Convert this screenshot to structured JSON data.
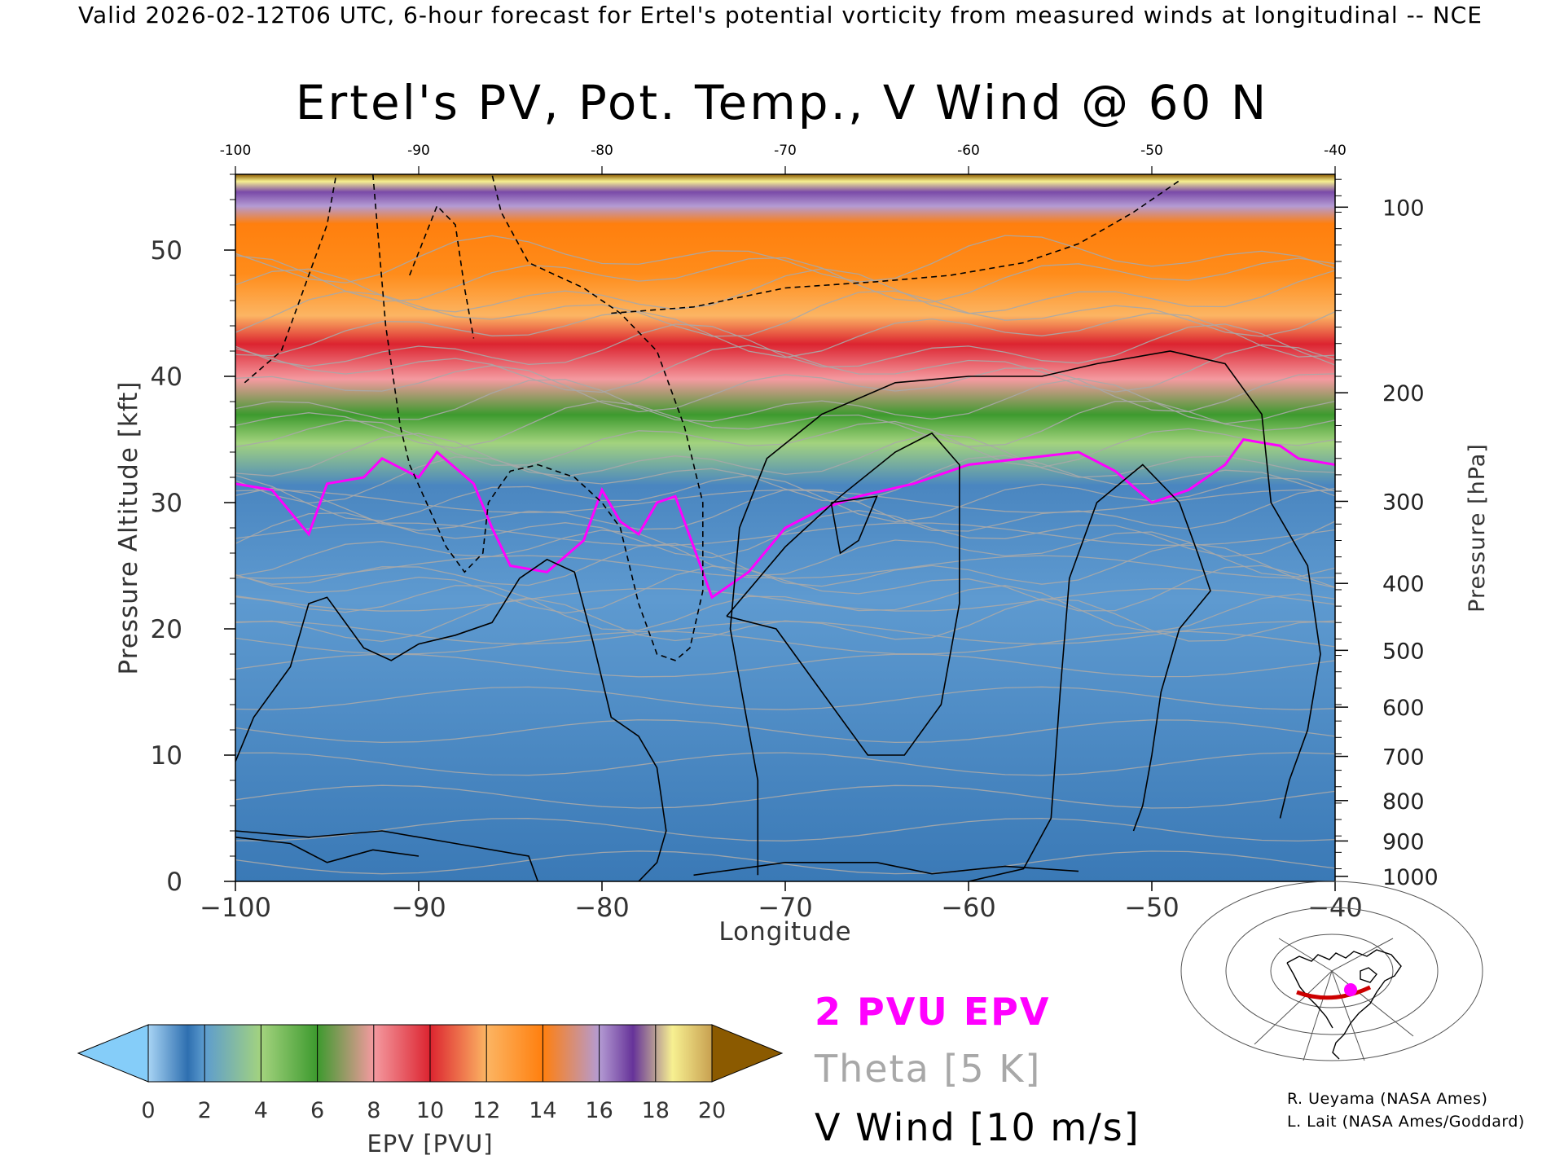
{
  "header": {
    "valid_line": "Valid 2026-02-12T06 UTC, 6-hour forecast for Ertel's potential vorticity from measured winds at longitudinal -- NCE"
  },
  "chart_data": {
    "type": "heatmap",
    "title": "Ertel's PV, Pot. Temp., V Wind @ 60 N",
    "xlabel": "Longitude",
    "ylabel": "Pressure Altitude [kft]",
    "y2label": "Pressure [hPa]",
    "xlim": [
      -100,
      -40
    ],
    "ylim": [
      0,
      56
    ],
    "x_ticks": [
      -100,
      -90,
      -80,
      -70,
      -60,
      -50,
      -40
    ],
    "x_tick_labels": [
      "−100",
      "−90",
      "−80",
      "−70",
      "−60",
      "−50",
      "−40"
    ],
    "x_top_tick_labels": [
      "-100",
      "-90",
      "-80",
      "-70",
      "-60",
      "-50",
      "-40"
    ],
    "y_ticks": [
      0,
      10,
      20,
      30,
      40,
      50
    ],
    "y_tick_labels": [
      "0",
      "10",
      "20",
      "30",
      "40",
      "50"
    ],
    "pressure_ticks": [
      {
        "label": "100",
        "kft": 53.4
      },
      {
        "label": "200",
        "kft": 38.7
      },
      {
        "label": "300",
        "kft": 30.1
      },
      {
        "label": "400",
        "kft": 23.6
      },
      {
        "label": "500",
        "kft": 18.3
      },
      {
        "label": "600",
        "kft": 13.8
      },
      {
        "label": "700",
        "kft": 9.9
      },
      {
        "label": "800",
        "kft": 6.4
      },
      {
        "label": "900",
        "kft": 3.2
      },
      {
        "label": "1000",
        "kft": 0.4
      }
    ],
    "epv_2pvu_tropopause_kft": [
      [
        -100,
        31.5
      ],
      [
        -98,
        31.0
      ],
      [
        -96,
        27.5
      ],
      [
        -95,
        31.5
      ],
      [
        -93,
        32.0
      ],
      [
        -92,
        33.5
      ],
      [
        -90,
        32.0
      ],
      [
        -89,
        34.0
      ],
      [
        -87,
        31.5
      ],
      [
        -86,
        28.0
      ],
      [
        -85,
        25.0
      ],
      [
        -83,
        24.5
      ],
      [
        -81,
        27.0
      ],
      [
        -80,
        31.0
      ],
      [
        -79,
        28.5
      ],
      [
        -78,
        27.5
      ],
      [
        -77,
        30.0
      ],
      [
        -76,
        30.5
      ],
      [
        -75,
        26.5
      ],
      [
        -74,
        22.5
      ],
      [
        -72,
        24.5
      ],
      [
        -70,
        28.0
      ],
      [
        -68,
        29.5
      ],
      [
        -66,
        30.5
      ],
      [
        -63,
        31.5
      ],
      [
        -60,
        33.0
      ],
      [
        -57,
        33.5
      ],
      [
        -54,
        34.0
      ],
      [
        -52,
        32.5
      ],
      [
        -50,
        30.0
      ],
      [
        -48,
        31.0
      ],
      [
        -46,
        33.0
      ],
      [
        -45,
        35.0
      ],
      [
        -43,
        34.5
      ],
      [
        -42,
        33.5
      ],
      [
        -40,
        33.0
      ]
    ],
    "v_wind_contours": [
      {
        "value": "0",
        "style": "solid",
        "points": [
          [
            -100,
            9.5
          ],
          [
            -99,
            13
          ],
          [
            -97,
            17
          ],
          [
            -96,
            22
          ],
          [
            -95,
            22.5
          ],
          [
            -93,
            18.5
          ],
          [
            -91.5,
            17.5
          ],
          [
            -90,
            18.8
          ],
          [
            -88,
            19.5
          ],
          [
            -86,
            20.5
          ],
          [
            -84.5,
            24
          ],
          [
            -83,
            25.5
          ],
          [
            -81.5,
            24.5
          ],
          [
            -80.5,
            19
          ],
          [
            -79.5,
            13
          ],
          [
            -78,
            11.5
          ],
          [
            -77,
            9
          ],
          [
            -76.5,
            4
          ],
          [
            -77,
            1.5
          ],
          [
            -78,
            0
          ]
        ]
      },
      {
        "value": "0",
        "style": "solid",
        "points": [
          [
            -75,
            0.5
          ],
          [
            -70,
            1.5
          ],
          [
            -65,
            1.5
          ],
          [
            -62,
            0.6
          ],
          [
            -58,
            1.2
          ],
          [
            -54,
            0.8
          ]
        ]
      },
      {
        "value": "0",
        "style": "solid",
        "points": [
          [
            -71.5,
            0.5
          ],
          [
            -71.5,
            8
          ],
          [
            -73,
            20
          ],
          [
            -72.5,
            28
          ],
          [
            -71,
            33.5
          ],
          [
            -68,
            37
          ],
          [
            -64,
            39.5
          ],
          [
            -60,
            40
          ],
          [
            -56,
            40
          ],
          [
            -53,
            41
          ],
          [
            -49,
            42
          ],
          [
            -46,
            41
          ],
          [
            -44,
            37
          ],
          [
            -43.5,
            30
          ],
          [
            -41.5,
            25
          ],
          [
            -40.8,
            18
          ],
          [
            -41.5,
            12
          ],
          [
            -42.5,
            8
          ],
          [
            -43,
            5
          ]
        ]
      },
      {
        "value": "10",
        "style": "solid",
        "points": [
          [
            -73.2,
            21
          ],
          [
            -70,
            26.5
          ],
          [
            -67,
            30.5
          ],
          [
            -64,
            34
          ],
          [
            -62,
            35.5
          ],
          [
            -60.5,
            33
          ],
          [
            -60.5,
            22
          ],
          [
            -61.5,
            14
          ],
          [
            -63.5,
            10
          ],
          [
            -65.5,
            10
          ],
          [
            -68,
            15
          ],
          [
            -70.5,
            20
          ],
          [
            -73.2,
            21
          ]
        ]
      },
      {
        "value": "0",
        "style": "solid",
        "points": [
          [
            -60,
            0
          ],
          [
            -57,
            1
          ],
          [
            -55.5,
            5
          ],
          [
            -55,
            15
          ],
          [
            -54.5,
            24
          ],
          [
            -53,
            30
          ],
          [
            -50.5,
            33
          ],
          [
            -48.5,
            30
          ],
          [
            -47.5,
            26
          ],
          [
            -46.8,
            23
          ],
          [
            -48.5,
            20
          ],
          [
            -49.5,
            15
          ],
          [
            -50,
            10
          ],
          [
            -50.5,
            6
          ],
          [
            -51,
            4
          ]
        ]
      },
      {
        "value": "0",
        "style": "solid",
        "points": [
          [
            -100,
            4
          ],
          [
            -96,
            3.5
          ],
          [
            -92,
            4
          ],
          [
            -88,
            3
          ],
          [
            -84,
            2
          ],
          [
            -83.5,
            0
          ]
        ]
      },
      {
        "value": "0",
        "style": "solid",
        "points": [
          [
            -100,
            3.5
          ],
          [
            -97,
            3
          ],
          [
            -95,
            1.5
          ],
          [
            -92.5,
            2.5
          ],
          [
            -90,
            2
          ]
        ]
      },
      {
        "value": "10",
        "style": "solid",
        "points": [
          [
            -67.5,
            30
          ],
          [
            -65,
            30.5
          ],
          [
            -66,
            27
          ],
          [
            -67,
            26
          ],
          [
            -67.5,
            30
          ]
        ]
      },
      {
        "value": "-10",
        "style": "dashed",
        "points": [
          [
            -99.5,
            39.5
          ],
          [
            -97.5,
            42
          ],
          [
            -96,
            48
          ],
          [
            -95,
            52
          ],
          [
            -94.5,
            56
          ]
        ]
      },
      {
        "value": "-10",
        "style": "dashed",
        "points": [
          [
            -92.5,
            56
          ],
          [
            -91.8,
            44
          ],
          [
            -91,
            36
          ],
          [
            -90.5,
            33
          ],
          [
            -88.5,
            26.5
          ],
          [
            -87.5,
            24.5
          ],
          [
            -86.5,
            26
          ],
          [
            -86.2,
            30
          ],
          [
            -85,
            32.5
          ],
          [
            -83.5,
            33
          ],
          [
            -81.5,
            32
          ],
          [
            -80,
            30
          ],
          [
            -79,
            28
          ],
          [
            -78,
            22
          ],
          [
            -77,
            18
          ],
          [
            -76,
            17.5
          ],
          [
            -75.2,
            18.5
          ],
          [
            -74.5,
            23
          ],
          [
            -74.5,
            30
          ],
          [
            -75.5,
            36
          ],
          [
            -77,
            42
          ],
          [
            -79,
            45
          ],
          [
            -81,
            47
          ],
          [
            -84,
            49
          ],
          [
            -85.5,
            53
          ],
          [
            -86,
            56
          ]
        ]
      },
      {
        "value": "-10",
        "style": "dashed",
        "points": [
          [
            -90.5,
            48
          ],
          [
            -89,
            53.5
          ],
          [
            -88,
            52
          ],
          [
            -87.5,
            47
          ],
          [
            -87,
            43
          ]
        ]
      },
      {
        "value": "-10",
        "style": "dashed",
        "points": [
          [
            -79.5,
            45
          ],
          [
            -75,
            45.5
          ],
          [
            -70,
            47
          ],
          [
            -65,
            47.5
          ],
          [
            -61,
            48
          ],
          [
            -57,
            49
          ],
          [
            -54,
            50.5
          ],
          [
            -51,
            53
          ],
          [
            -48.5,
            55.5
          ]
        ]
      }
    ],
    "colorbar": {
      "label": "EPV [PVU]",
      "ticks": [
        "0",
        "2",
        "4",
        "6",
        "8",
        "10",
        "12",
        "14",
        "16",
        "18",
        "20"
      ],
      "colors": [
        "#85cdf9",
        "#2e6fb0",
        "#5d9ccf",
        "#a3d37e",
        "#3d9a2e",
        "#f49aa0",
        "#dc2430",
        "#fcb563",
        "#ff7f0e",
        "#b49bd3",
        "#663399",
        "#f7f091",
        "#8b5a00"
      ]
    },
    "legend": [
      {
        "label": "2 PVU EPV",
        "color": "#ff00ff"
      },
      {
        "label": "Theta [5 K]",
        "color": "#a8a8a8"
      },
      {
        "label": "V Wind [10 m/s]",
        "color": "#000000"
      }
    ]
  },
  "inset_map": {
    "latitude": "60 N",
    "track_color": "#cc0000",
    "marker_color": "#ff00ff"
  },
  "credits": [
    "R. Ueyama (NASA Ames)",
    "L. Lait (NASA Ames/Goddard)"
  ]
}
